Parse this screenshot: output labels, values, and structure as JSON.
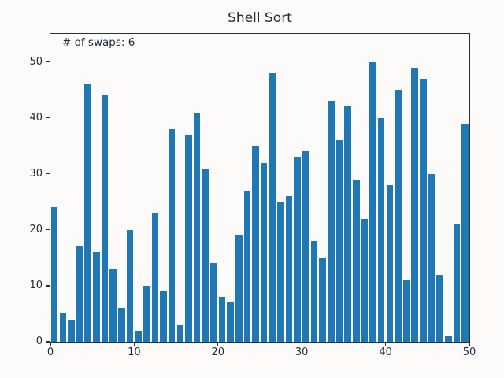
{
  "figure": {
    "title": "Shell Sort",
    "annotation": "# of swaps: 6"
  },
  "chart_data": {
    "type": "bar",
    "title": "Shell Sort",
    "annotation": "# of swaps: 6",
    "values": [
      24,
      5,
      4,
      17,
      46,
      16,
      44,
      13,
      6,
      20,
      2,
      10,
      23,
      9,
      38,
      3,
      37,
      41,
      31,
      14,
      8,
      7,
      19,
      27,
      35,
      32,
      48,
      25,
      26,
      33,
      34,
      18,
      15,
      43,
      36,
      42,
      29,
      22,
      50,
      40,
      28,
      45,
      11,
      49,
      47,
      30,
      12,
      1,
      21,
      39
    ],
    "xlabel": "",
    "ylabel": "",
    "xlim": [
      0,
      50
    ],
    "ylim": [
      0,
      55
    ],
    "xticks": [
      0,
      10,
      20,
      30,
      40,
      50
    ],
    "yticks": [
      0,
      10,
      20,
      30,
      40,
      50
    ],
    "bar_color": "#1f77b4",
    "text_color": "#1e2b38",
    "spine_color": "#24323f",
    "background_color": "#fcfbfa",
    "grid": false,
    "legend": "none"
  }
}
